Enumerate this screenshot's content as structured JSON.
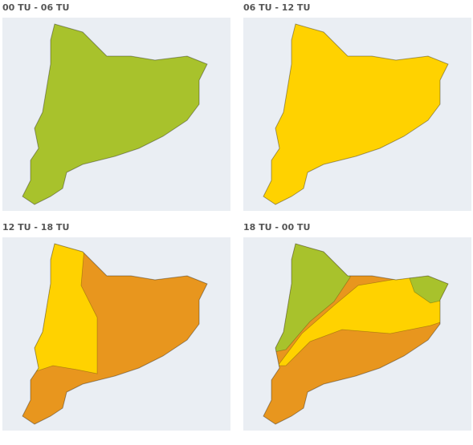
{
  "panels": [
    {
      "title": "00 TU - 06 TU"
    },
    {
      "title": "06 TU - 12 TU"
    },
    {
      "title": "12 TU - 18 TU"
    },
    {
      "title": "18 TU - 00 TU"
    }
  ]
}
